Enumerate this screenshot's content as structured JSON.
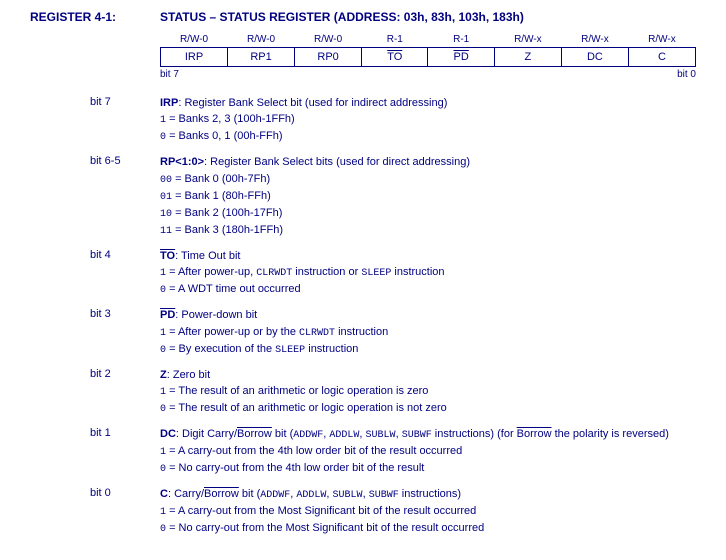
{
  "header": {
    "label": "REGISTER 4-1:",
    "title": "STATUS – STATUS REGISTER (ADDRESS: 03h, 83h, 103h, 183h)"
  },
  "bitTable": {
    "rw": [
      "R/W-0",
      "R/W-0",
      "R/W-0",
      "R-1",
      "R-1",
      "R/W-x",
      "R/W-x",
      "R/W-x"
    ],
    "names": [
      "IRP",
      "RP1",
      "RP0",
      "TO",
      "PD",
      "Z",
      "DC",
      "C"
    ],
    "overlineIdx": [
      3,
      4
    ],
    "leftLabel": "bit 7",
    "rightLabel": "bit 0"
  },
  "bits": [
    {
      "num": "bit 7",
      "name": "IRP",
      "nameOverline": false,
      "after": ": Register Bank Select bit (used for indirect addressing)",
      "lines": [
        {
          "pre": "1",
          "text": " = Banks 2, 3 (100h-1FFh)"
        },
        {
          "pre": "0",
          "text": " = Banks 0, 1 (00h-FFh)"
        }
      ]
    },
    {
      "num": "bit 6-5",
      "name": "RP<1:0>",
      "nameOverline": false,
      "after": ": Register Bank Select bits (used for direct addressing)",
      "lines": [
        {
          "pre": "00",
          "text": " = Bank 0 (00h-7Fh)"
        },
        {
          "pre": "01",
          "text": " = Bank 1 (80h-FFh)"
        },
        {
          "pre": "10",
          "text": " = Bank 2 (100h-17Fh)"
        },
        {
          "pre": "11",
          "text": " = Bank 3 (180h-1FFh)"
        }
      ]
    },
    {
      "num": "bit 4",
      "name": "TO",
      "nameOverline": true,
      "after": ": Time Out bit",
      "lines": [
        {
          "pre": "1",
          "html": " = After power-up, <span class=\"mono\">CLRWDT</span> instruction or <span class=\"mono\">SLEEP</span> instruction"
        },
        {
          "pre": "0",
          "text": " = A WDT time out occurred"
        }
      ]
    },
    {
      "num": "bit 3",
      "name": "PD",
      "nameOverline": true,
      "after": ": Power-down bit",
      "lines": [
        {
          "pre": "1",
          "html": " = After power-up or by the <span class=\"mono\">CLRWDT</span> instruction"
        },
        {
          "pre": "0",
          "html": " = By execution of the <span class=\"mono\">SLEEP</span> instruction"
        }
      ]
    },
    {
      "num": "bit 2",
      "name": "Z",
      "nameOverline": false,
      "after": ": Zero bit",
      "lines": [
        {
          "pre": "1",
          "text": " = The result of an arithmetic or logic operation is zero"
        },
        {
          "pre": "0",
          "text": " = The result of an arithmetic or logic operation is not zero"
        }
      ]
    },
    {
      "num": "bit 1",
      "name": "DC",
      "nameOverline": false,
      "afterHtml": ": Digit Carry/<span class=\"overline\">Borrow</span> bit (<span class=\"mono\">ADDWF</span>, <span class=\"mono\">ADDLW</span>, <span class=\"mono\">SUBLW</span>, <span class=\"mono\">SUBWF</span> instructions) (for <span class=\"overline\">Borrow</span> the polarity is reversed)",
      "lines": [
        {
          "pre": "1",
          "text": " = A carry-out from the 4th low order bit of the result occurred"
        },
        {
          "pre": "0",
          "text": " = No carry-out from the 4th low order bit of the result"
        }
      ]
    },
    {
      "num": "bit 0",
      "name": "C",
      "nameOverline": false,
      "afterHtml": ": Carry/<span class=\"overline\">Borrow</span> bit (<span class=\"mono\">ADDWF</span>, <span class=\"mono\">ADDLW</span>, <span class=\"mono\">SUBLW</span>, <span class=\"mono\">SUBWF</span> instructions)",
      "lines": [
        {
          "pre": "1",
          "text": " = A carry-out from the Most Significant bit of the result occurred"
        },
        {
          "pre": "0",
          "text": " = No carry-out from the Most Significant bit of the result occurred"
        }
      ]
    }
  ]
}
